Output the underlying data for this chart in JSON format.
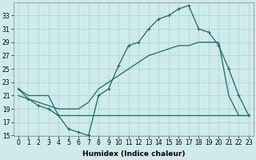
{
  "title": "",
  "xlabel": "Humidex (Indice chaleur)",
  "background_color": "#ceeaea",
  "grid_color": "#aacfcf",
  "line_color": "#1a6b6b",
  "x_values": [
    0,
    1,
    2,
    3,
    4,
    5,
    6,
    7,
    8,
    9,
    10,
    11,
    12,
    13,
    14,
    15,
    16,
    17,
    18,
    19,
    20,
    21,
    22,
    23
  ],
  "line1_y": [
    22,
    20.5,
    19.5,
    19,
    18,
    16,
    15.5,
    15,
    21,
    22,
    25.5,
    28.5,
    29,
    31,
    32.5,
    33,
    34,
    34.5,
    31,
    30.5,
    28.5,
    25,
    21,
    18
  ],
  "line2_y": [
    22,
    21,
    21,
    21,
    18,
    18,
    18,
    18,
    18,
    18,
    18,
    18,
    18,
    18,
    18,
    18,
    18,
    18,
    18,
    18,
    18,
    18,
    18,
    18
  ],
  "line3_y": [
    21,
    20.5,
    20,
    19.5,
    19,
    19,
    19,
    20,
    22,
    23,
    24,
    25,
    26,
    27,
    27.5,
    28,
    28.5,
    28.5,
    29,
    29,
    29,
    21,
    18,
    18
  ],
  "xlim": [
    -0.5,
    23.5
  ],
  "ylim": [
    15,
    35
  ],
  "yticks": [
    15,
    17,
    19,
    21,
    23,
    25,
    27,
    29,
    31,
    33
  ],
  "xtick_labels": [
    "0",
    "1",
    "2",
    "3",
    "4",
    "5",
    "6",
    "7",
    "8",
    "9",
    "10",
    "11",
    "12",
    "13",
    "14",
    "15",
    "16",
    "17",
    "18",
    "19",
    "20",
    "21",
    "22",
    "23"
  ],
  "xlabel_fontsize": 6.5,
  "tick_fontsize": 5.5,
  "linewidth": 0.9,
  "markersize": 3.0
}
